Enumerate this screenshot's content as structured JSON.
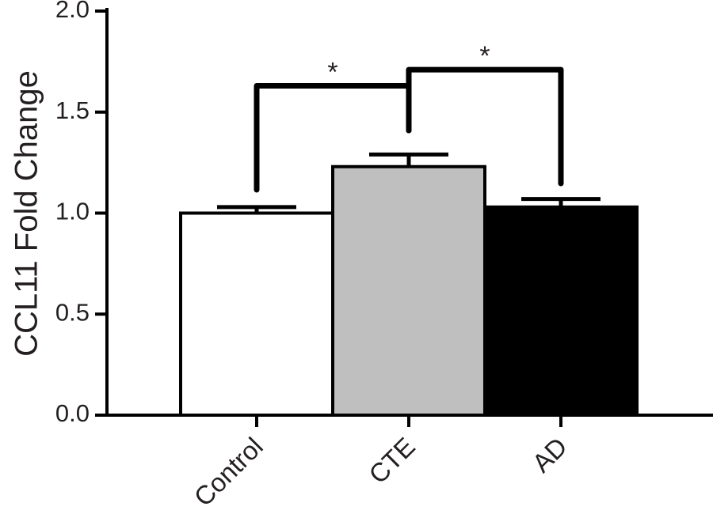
{
  "chart_data": {
    "type": "bar",
    "title": "",
    "ylabel": "CCL11 Fold Change",
    "xlabel": "",
    "categories": [
      "Control",
      "CTE",
      "AD"
    ],
    "values": [
      1.0,
      1.23,
      1.03
    ],
    "errors": [
      0.03,
      0.06,
      0.04
    ],
    "bar_colors": [
      "#ffffff",
      "#bfbfbf",
      "#000000"
    ],
    "ylim": [
      0,
      2.0
    ],
    "yticks": [
      0.0,
      0.5,
      1.0,
      1.5,
      2.0
    ],
    "ytick_labels": [
      "0.0",
      "0.5",
      "1.0",
      "1.5",
      "2.0"
    ],
    "grid": false,
    "significance": [
      {
        "groups": [
          "Control",
          "CTE"
        ],
        "label": "*",
        "level": 1.63
      },
      {
        "groups": [
          "CTE",
          "AD"
        ],
        "label": "*",
        "level": 1.71
      }
    ]
  }
}
